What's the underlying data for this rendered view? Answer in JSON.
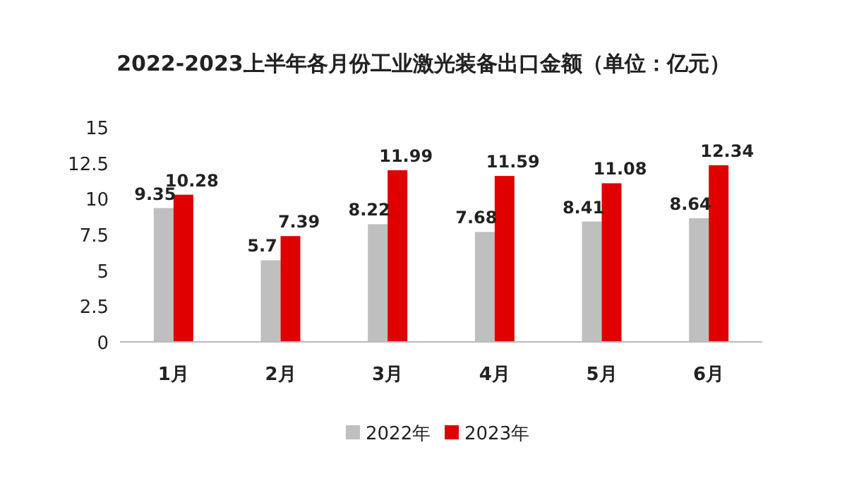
{
  "chart_data": {
    "type": "bar",
    "title": "2022-2023上半年各月份工业激光装备出口金额（单位：亿元）",
    "categories": [
      "1月",
      "2月",
      "3月",
      "4月",
      "5月",
      "6月"
    ],
    "series": [
      {
        "name": "2022年",
        "color": "#bfbfbf",
        "values": [
          9.35,
          5.7,
          8.22,
          7.68,
          8.41,
          8.64
        ]
      },
      {
        "name": "2023年",
        "color": "#e00000",
        "values": [
          10.28,
          7.39,
          11.99,
          11.59,
          11.08,
          12.34
        ]
      }
    ],
    "ylim": [
      0,
      15
    ],
    "yticks": [
      0,
      2.5,
      5,
      7.5,
      10,
      12.5,
      15
    ],
    "data_labels": true,
    "legend": "bottom",
    "grid": false
  }
}
